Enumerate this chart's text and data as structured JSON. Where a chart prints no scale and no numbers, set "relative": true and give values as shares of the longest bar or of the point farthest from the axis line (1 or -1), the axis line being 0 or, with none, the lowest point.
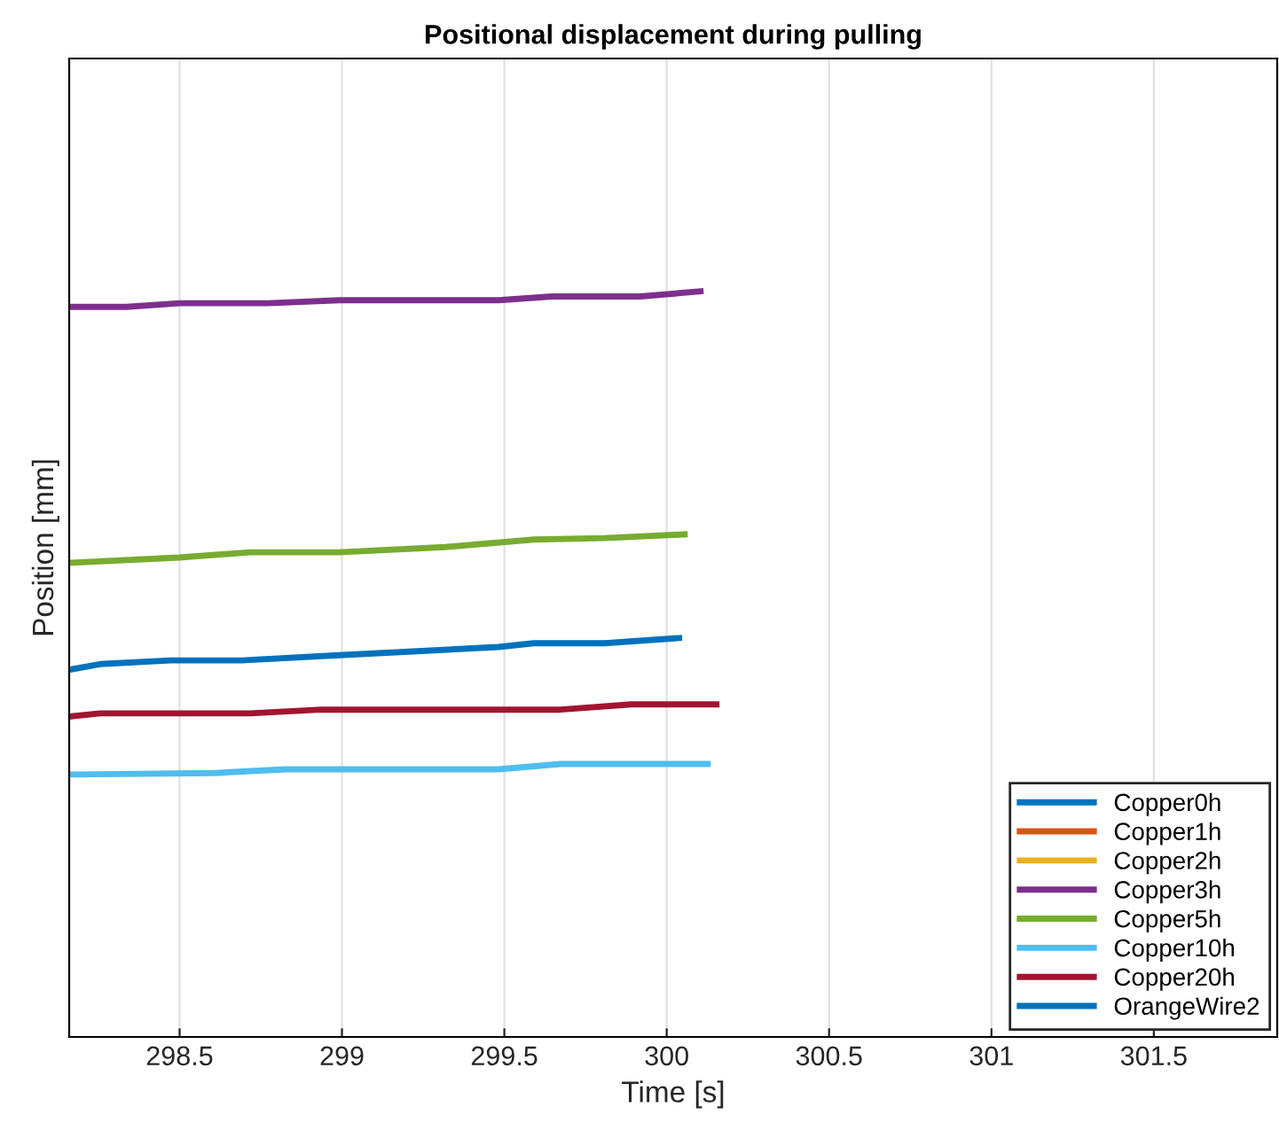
{
  "chart_data": {
    "type": "line",
    "title": "Positional displacement during pulling",
    "xlabel": "Time [s]",
    "ylabel": "Position [mm]",
    "relative": true,
    "xlim": [
      298.16,
      301.88
    ],
    "xticks": [
      298.5,
      299,
      299.5,
      300,
      300.5,
      301,
      301.5
    ],
    "grid": "x",
    "legend": "bottom right",
    "line_style": "solid",
    "marker": "none",
    "series": [
      {
        "name": "Copper0h",
        "color": "#0072bd",
        "x": [
          298.167,
          298.255,
          298.473,
          298.691,
          298.991,
          299.482,
          299.591,
          299.809,
          300.038
        ],
        "values": [
          0.493,
          0.5,
          0.505,
          0.505,
          0.512,
          0.523,
          0.528,
          0.528,
          0.535
        ]
      },
      {
        "name": "Copper1h",
        "color": "#d95319"
      },
      {
        "name": "Copper2h",
        "color": "#edb120"
      },
      {
        "name": "Copper3h",
        "color": "#7e2f8e",
        "x": [
          298.167,
          298.336,
          298.5,
          298.773,
          298.991,
          299.482,
          299.646,
          299.918,
          300.104
        ],
        "values": [
          0.979,
          0.979,
          0.984,
          0.984,
          0.988,
          0.988,
          0.993,
          0.993,
          1.0
        ]
      },
      {
        "name": "Copper5h",
        "color": "#77ac30",
        "x": [
          298.167,
          298.5,
          298.718,
          298.991,
          299.318,
          299.591,
          299.809,
          300.055
        ],
        "values": [
          0.636,
          0.643,
          0.65,
          0.65,
          0.657,
          0.667,
          0.669,
          0.674
        ]
      },
      {
        "name": "Copper10h",
        "color": "#4dbeee",
        "x": [
          298.167,
          298.609,
          298.827,
          299.482,
          299.673,
          300.126
        ],
        "values": [
          0.352,
          0.354,
          0.359,
          0.359,
          0.366,
          0.366
        ]
      },
      {
        "name": "Copper20h",
        "color": "#a2142f",
        "x": [
          298.167,
          298.255,
          298.718,
          298.936,
          299.673,
          299.891,
          300.153
        ],
        "values": [
          0.43,
          0.434,
          0.434,
          0.439,
          0.439,
          0.446,
          0.446
        ]
      },
      {
        "name": "OrangeWire2",
        "color": "#0072bd"
      }
    ]
  }
}
